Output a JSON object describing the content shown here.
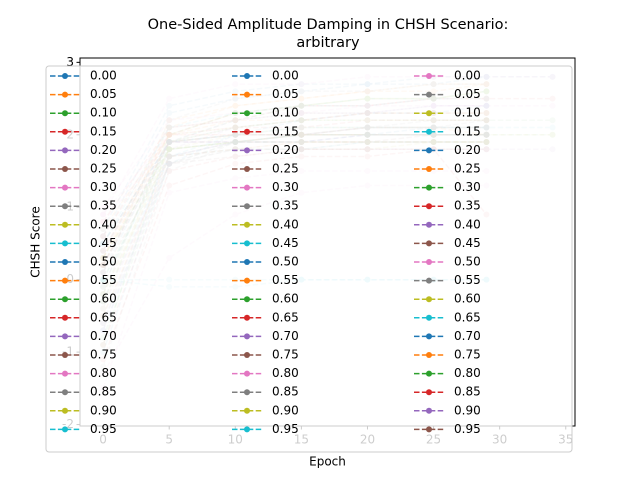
{
  "chart_data": {
    "type": "line",
    "title": "One-Sided Amplitude Damping in CHSH Scenario:\narbitrary",
    "x_label": "Epoch",
    "y_label": "CHSH Score",
    "xlim": [
      -1.75,
      35.7
    ],
    "ylim": [
      -2.02,
      3.06
    ],
    "xticks": [
      0,
      5,
      10,
      15,
      20,
      25,
      30,
      35
    ],
    "yticks": [
      -2,
      -1,
      0,
      1,
      2,
      3
    ],
    "x": [
      0,
      5,
      10,
      15,
      20,
      25,
      29,
      34
    ],
    "legend_columns": 3,
    "series": [
      {
        "name": "0.00",
        "color": "#1f77b4",
        "values": [
          0.6,
          2.3,
          2.5,
          2.6,
          2.7,
          2.7,
          2.8,
          2.8
        ]
      },
      {
        "name": "0.05",
        "color": "#ff7f0e",
        "values": [
          0.3,
          2.2,
          2.4,
          2.5,
          2.6,
          2.6,
          2.7,
          null
        ]
      },
      {
        "name": "0.10",
        "color": "#2ca02c",
        "values": [
          -0.2,
          2.0,
          2.3,
          2.4,
          2.5,
          2.5,
          2.6,
          null
        ]
      },
      {
        "name": "0.15",
        "color": "#d62728",
        "values": [
          0.8,
          2.1,
          2.2,
          2.4,
          2.4,
          2.5,
          2.5,
          null
        ]
      },
      {
        "name": "0.20",
        "color": "#9467bd",
        "values": [
          -0.6,
          1.8,
          2.1,
          2.2,
          2.3,
          2.4,
          2.4,
          null
        ]
      },
      {
        "name": "0.25",
        "color": "#8c564b",
        "values": [
          0.2,
          1.9,
          2.1,
          2.2,
          2.3,
          2.3,
          2.3,
          null
        ]
      },
      {
        "name": "0.30",
        "color": "#e377c2",
        "values": [
          1.0,
          2.2,
          2.3,
          2.3,
          2.4,
          2.4,
          2.4,
          2.4
        ]
      },
      {
        "name": "0.35",
        "color": "#7f7f7f",
        "values": [
          -1.2,
          1.5,
          1.9,
          2.0,
          2.1,
          2.1,
          2.2,
          null
        ]
      },
      {
        "name": "0.40",
        "color": "#bcbd22",
        "values": [
          0.4,
          2.0,
          2.1,
          2.2,
          2.2,
          2.2,
          2.2,
          null
        ]
      },
      {
        "name": "0.45",
        "color": "#17becf",
        "values": [
          -0.3,
          1.7,
          2.0,
          2.0,
          2.1,
          2.1,
          2.1,
          null
        ]
      },
      {
        "name": "0.50",
        "color": "#1f77b4",
        "values": [
          0.1,
          1.9,
          2.0,
          2.0,
          2.0,
          2.1,
          2.1,
          null
        ]
      },
      {
        "name": "0.55",
        "color": "#ff7f0e",
        "values": [
          0.7,
          2.0,
          2.0,
          2.0,
          2.1,
          2.1,
          2.0,
          null
        ]
      },
      {
        "name": "0.60",
        "color": "#2ca02c",
        "values": [
          -0.8,
          1.6,
          1.9,
          2.0,
          2.0,
          2.0,
          2.0,
          2.0
        ]
      },
      {
        "name": "0.65",
        "color": "#d62728",
        "values": [
          0.5,
          1.9,
          1.9,
          2.0,
          2.0,
          2.0,
          2.0,
          null
        ]
      },
      {
        "name": "0.70",
        "color": "#9467bd",
        "values": [
          -0.4,
          1.7,
          1.9,
          1.9,
          2.0,
          2.0,
          2.0,
          null
        ]
      },
      {
        "name": "0.75",
        "color": "#8c564b",
        "values": [
          0.2,
          1.8,
          1.9,
          1.9,
          1.9,
          2.0,
          2.0,
          null
        ]
      },
      {
        "name": "0.80",
        "color": "#e377c2",
        "values": [
          0.9,
          2.0,
          2.0,
          2.0,
          2.0,
          2.0,
          2.0,
          null
        ]
      },
      {
        "name": "0.85",
        "color": "#7f7f7f",
        "values": [
          -0.5,
          1.6,
          1.8,
          1.9,
          1.9,
          1.9,
          1.9,
          null
        ]
      },
      {
        "name": "0.90",
        "color": "#bcbd22",
        "values": [
          0.3,
          1.8,
          1.9,
          1.9,
          1.9,
          1.9,
          1.9,
          null
        ]
      },
      {
        "name": "0.95",
        "color": "#17becf",
        "values": [
          0.0,
          1.7,
          1.8,
          1.8,
          1.9,
          1.9,
          1.9,
          null
        ]
      },
      {
        "name": "0.00",
        "color": "#1f77b4",
        "values": [
          0.7,
          2.4,
          2.6,
          2.7,
          2.7,
          2.8,
          2.8,
          null
        ]
      },
      {
        "name": "0.05",
        "color": "#ff7f0e",
        "values": [
          0.2,
          2.1,
          2.4,
          2.5,
          2.6,
          2.7,
          2.7,
          null
        ]
      },
      {
        "name": "0.10",
        "color": "#2ca02c",
        "values": [
          -0.9,
          1.9,
          2.2,
          2.4,
          2.5,
          2.5,
          2.6,
          null
        ]
      },
      {
        "name": "0.15",
        "color": "#d62728",
        "values": [
          0.4,
          2.0,
          2.3,
          2.4,
          2.4,
          2.5,
          2.5,
          2.5
        ]
      },
      {
        "name": "0.20",
        "color": "#9467bd",
        "values": [
          -0.1,
          1.9,
          2.2,
          2.3,
          2.3,
          2.4,
          2.4,
          null
        ]
      },
      {
        "name": "0.25",
        "color": "#8c564b",
        "values": [
          0.6,
          2.1,
          2.2,
          2.3,
          2.3,
          2.3,
          2.3,
          null
        ]
      },
      {
        "name": "0.30",
        "color": "#e377c2",
        "values": [
          -1.5,
          1.2,
          1.4,
          1.5,
          1.5,
          1.5,
          1.5,
          null
        ]
      },
      {
        "name": "0.35",
        "color": "#7f7f7f",
        "values": [
          0.2,
          1.9,
          2.0,
          2.1,
          2.1,
          2.2,
          2.2,
          null
        ]
      },
      {
        "name": "0.40",
        "color": "#bcbd22",
        "values": [
          -0.3,
          1.8,
          2.0,
          2.1,
          2.1,
          2.1,
          2.1,
          null
        ]
      },
      {
        "name": "0.45",
        "color": "#17becf",
        "values": [
          0.5,
          1.9,
          2.0,
          2.1,
          2.1,
          2.1,
          2.1,
          2.1
        ]
      },
      {
        "name": "0.50",
        "color": "#1f77b4",
        "values": [
          -0.7,
          1.7,
          1.9,
          2.0,
          2.0,
          2.0,
          2.0,
          null
        ]
      },
      {
        "name": "0.55",
        "color": "#ff7f0e",
        "values": [
          0.3,
          1.9,
          2.0,
          2.0,
          2.0,
          2.0,
          2.0,
          null
        ]
      },
      {
        "name": "0.60",
        "color": "#2ca02c",
        "values": [
          0.0,
          1.8,
          1.9,
          2.0,
          2.0,
          2.0,
          2.0,
          null
        ]
      },
      {
        "name": "0.65",
        "color": "#d62728",
        "values": [
          -1.1,
          1.3,
          1.6,
          1.7,
          1.7,
          1.8,
          0.9,
          null
        ]
      },
      {
        "name": "0.70",
        "color": "#9467bd",
        "values": [
          0.4,
          1.9,
          1.9,
          1.9,
          2.0,
          2.0,
          2.0,
          null
        ]
      },
      {
        "name": "0.75",
        "color": "#8c564b",
        "values": [
          -0.2,
          1.7,
          1.9,
          1.9,
          1.9,
          1.9,
          1.9,
          null
        ]
      },
      {
        "name": "0.80",
        "color": "#e377c2",
        "values": [
          0.8,
          1.9,
          1.9,
          1.9,
          1.9,
          1.9,
          1.9,
          null
        ]
      },
      {
        "name": "0.85",
        "color": "#7f7f7f",
        "values": [
          -0.6,
          1.6,
          1.8,
          1.8,
          1.9,
          1.9,
          1.9,
          null
        ]
      },
      {
        "name": "0.90",
        "color": "#bcbd22",
        "values": [
          0.1,
          1.7,
          1.8,
          1.8,
          1.8,
          1.9,
          1.9,
          null
        ]
      },
      {
        "name": "0.95",
        "color": "#17becf",
        "values": [
          0.0,
          0.0,
          0.0,
          0.0,
          0.0,
          0.0,
          0.0,
          null
        ]
      },
      {
        "name": "0.00",
        "color": "#e377c2",
        "values": [
          0.9,
          2.5,
          2.7,
          2.7,
          2.8,
          2.8,
          2.8,
          2.8
        ]
      },
      {
        "name": "0.05",
        "color": "#7f7f7f",
        "values": [
          0.1,
          2.2,
          2.5,
          2.6,
          2.6,
          2.7,
          2.7,
          null
        ]
      },
      {
        "name": "0.10",
        "color": "#bcbd22",
        "values": [
          -0.4,
          2.0,
          2.3,
          2.4,
          2.5,
          2.5,
          2.6,
          null
        ]
      },
      {
        "name": "0.15",
        "color": "#17becf",
        "values": [
          0.5,
          2.1,
          2.3,
          2.4,
          2.4,
          2.5,
          2.5,
          null
        ]
      },
      {
        "name": "0.20",
        "color": "#1f77b4",
        "values": [
          -1.0,
          1.6,
          2.0,
          2.2,
          2.3,
          2.3,
          2.4,
          null
        ]
      },
      {
        "name": "0.25",
        "color": "#ff7f0e",
        "values": [
          0.3,
          2.0,
          2.2,
          2.2,
          2.3,
          2.3,
          2.3,
          null
        ]
      },
      {
        "name": "0.30",
        "color": "#2ca02c",
        "values": [
          -0.1,
          1.9,
          2.1,
          2.2,
          2.2,
          2.2,
          2.2,
          2.2
        ]
      },
      {
        "name": "0.35",
        "color": "#d62728",
        "values": [
          0.6,
          2.0,
          2.1,
          2.1,
          2.2,
          2.2,
          2.2,
          null
        ]
      },
      {
        "name": "0.40",
        "color": "#9467bd",
        "values": [
          -0.7,
          1.6,
          1.9,
          2.0,
          2.1,
          2.1,
          2.1,
          null
        ]
      },
      {
        "name": "0.45",
        "color": "#8c564b",
        "values": [
          0.2,
          1.9,
          2.0,
          2.0,
          2.1,
          2.1,
          2.1,
          null
        ]
      },
      {
        "name": "0.50",
        "color": "#e377c2",
        "values": [
          -1.3,
          0.3,
          0.9,
          1.2,
          1.3,
          1.3,
          1.3,
          null
        ]
      },
      {
        "name": "0.55",
        "color": "#7f7f7f",
        "values": [
          0.4,
          1.9,
          2.0,
          2.0,
          2.0,
          2.0,
          2.0,
          null
        ]
      },
      {
        "name": "0.60",
        "color": "#bcbd22",
        "values": [
          -0.2,
          1.8,
          1.9,
          2.0,
          2.0,
          2.0,
          2.0,
          2.0
        ]
      },
      {
        "name": "0.65",
        "color": "#17becf",
        "values": [
          0.0,
          -0.1,
          -0.1,
          0.0,
          0.0,
          0.0,
          0.0,
          null
        ]
      },
      {
        "name": "0.70",
        "color": "#1f77b4",
        "values": [
          0.5,
          1.9,
          1.9,
          1.9,
          2.0,
          2.0,
          2.0,
          null
        ]
      },
      {
        "name": "0.75",
        "color": "#ff7f0e",
        "values": [
          -0.5,
          1.7,
          1.8,
          1.9,
          1.9,
          1.9,
          1.9,
          null
        ]
      },
      {
        "name": "0.80",
        "color": "#2ca02c",
        "values": [
          0.3,
          1.8,
          1.9,
          1.9,
          1.9,
          1.9,
          1.9,
          null
        ]
      },
      {
        "name": "0.85",
        "color": "#d62728",
        "values": [
          -0.9,
          1.5,
          1.7,
          1.8,
          1.8,
          1.8,
          1.8,
          null
        ]
      },
      {
        "name": "0.90",
        "color": "#9467bd",
        "values": [
          0.1,
          1.7,
          1.8,
          1.8,
          1.8,
          1.8,
          1.8,
          1.8
        ]
      },
      {
        "name": "0.95",
        "color": "#8c564b",
        "values": [
          -0.3,
          1.6,
          1.7,
          1.8,
          1.8,
          1.8,
          1.8,
          null
        ]
      }
    ]
  }
}
